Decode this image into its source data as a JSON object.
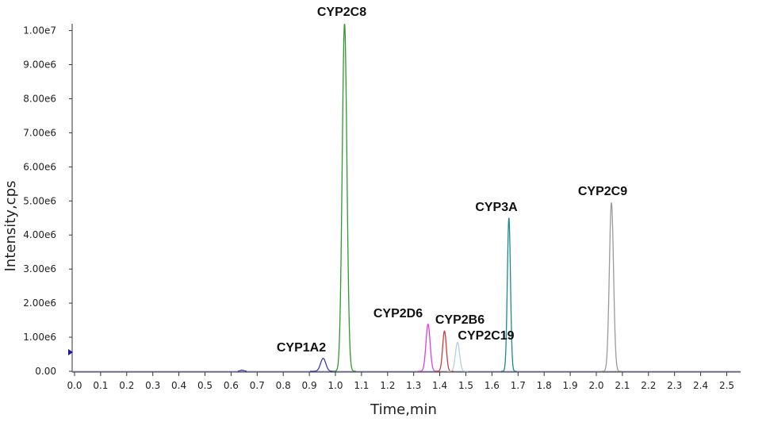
{
  "chart_data": {
    "type": "line",
    "xlabel": "Time,min",
    "ylabel": "Intensity,cps",
    "xlim": [
      0.0,
      2.57
    ],
    "ylim": [
      0,
      10200000
    ],
    "x_ticks": [
      "0.0",
      "0.1",
      "0.2",
      "0.3",
      "0.4",
      "0.5",
      "0.6",
      "0.7",
      "0.8",
      "0.9",
      "1.0",
      "1.1",
      "1.2",
      "1.3",
      "1.4",
      "1.5",
      "1.6",
      "1.7",
      "1.8",
      "1.9",
      "2.0",
      "2.1",
      "2.2",
      "2.3",
      "2.4",
      "2.5"
    ],
    "y_ticks": [
      {
        "value": 0,
        "label": "0.00"
      },
      {
        "value": 1000000,
        "label": "1.00e6"
      },
      {
        "value": 2000000,
        "label": "2.00e6"
      },
      {
        "value": 3000000,
        "label": "3.00e6"
      },
      {
        "value": 4000000,
        "label": "4.00e6"
      },
      {
        "value": 5000000,
        "label": "5.00e6"
      },
      {
        "value": 6000000,
        "label": "6.00e6"
      },
      {
        "value": 7000000,
        "label": "7.00e6"
      },
      {
        "value": 8000000,
        "label": "8.00e6"
      },
      {
        "value": 9000000,
        "label": "9.00e6"
      },
      {
        "value": 10000000,
        "label": "1.00e7"
      }
    ],
    "grid": false,
    "series": [
      {
        "name": "CYP1A2",
        "color": "#3a3ab8",
        "peak_time": 0.953,
        "peak_height": 380000,
        "width": 0.01
      },
      {
        "name": "CYP2C8",
        "color": "#2e9a2e",
        "peak_time": 1.035,
        "peak_height": 10200000,
        "width": 0.009
      },
      {
        "name": "CYP2D6",
        "color": "#e040d8",
        "peak_time": 1.355,
        "peak_height": 1380000,
        "width": 0.008
      },
      {
        "name": "CYP2B6",
        "color": "#d43a3a",
        "peak_time": 1.418,
        "peak_height": 1180000,
        "width": 0.007
      },
      {
        "name": "CYP2C19",
        "color": "#b5cfe0",
        "peak_time": 1.468,
        "peak_height": 850000,
        "width": 0.008
      },
      {
        "name": "CYP3A",
        "color": "#1f8a8a",
        "peak_time": 1.665,
        "peak_height": 4500000,
        "width": 0.006
      },
      {
        "name": "CYP2C9",
        "color": "#9a9a9a",
        "peak_time": 2.058,
        "peak_height": 4950000,
        "width": 0.008
      }
    ]
  }
}
